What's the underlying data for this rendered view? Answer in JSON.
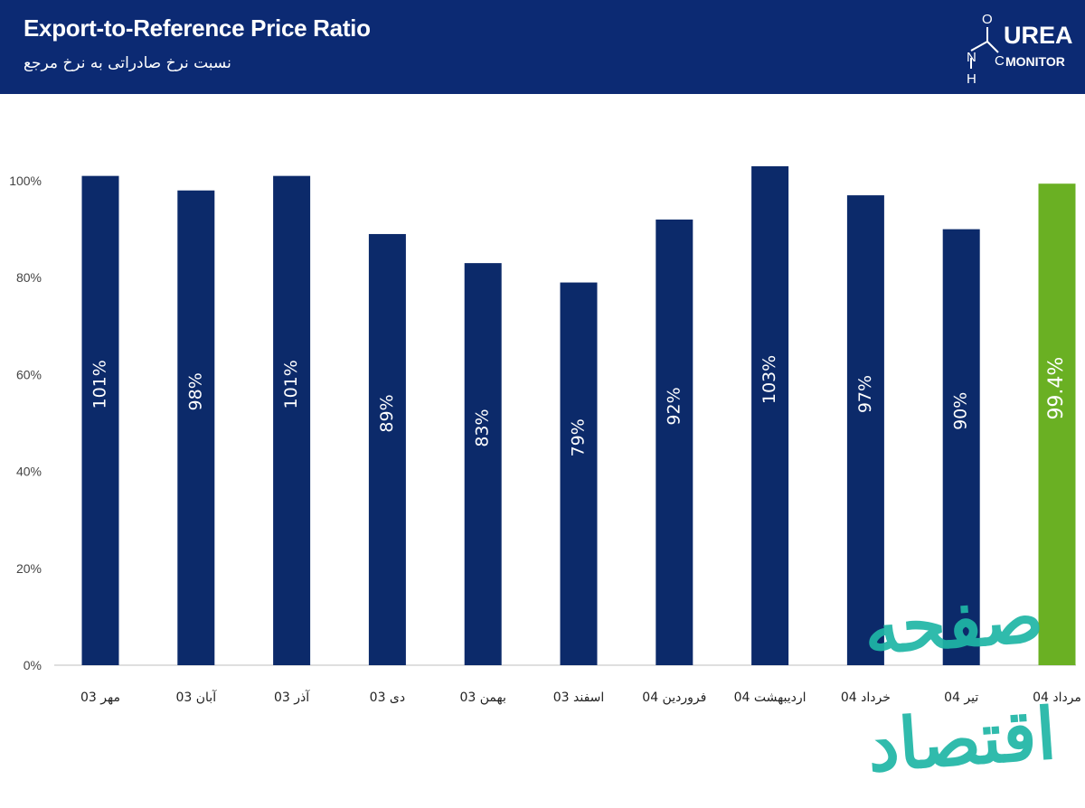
{
  "header": {
    "title": "Export-to-Reference Price Ratio",
    "subtitle": "نسبت نرخ صادراتی به نرخ مرجع",
    "logo_main": "UREA",
    "logo_sub": "MONITOR",
    "logo_atoms": [
      "O",
      "N",
      "H",
      "C"
    ],
    "background": "#0c2a73"
  },
  "watermark": {
    "text": "صفحه اقتصاد",
    "color": "#1fb6a6"
  },
  "chart_data": {
    "type": "bar",
    "title": "Export-to-Reference Price Ratio",
    "subtitle": "نسبت نرخ صادراتی به نرخ مرجع",
    "categories": [
      "مهر 03",
      "آبان 03",
      "آذر 03",
      "دی 03",
      "بهمن 03",
      "اسفند 03",
      "فروردین 04",
      "اردیبهشت 04",
      "خرداد 04",
      "تیر 04",
      "مرداد 04"
    ],
    "values": [
      101,
      98,
      101,
      89,
      83,
      79,
      92,
      103,
      97,
      90,
      99.4
    ],
    "data_labels": [
      "101%",
      "98%",
      "101%",
      "89%",
      "83%",
      "79%",
      "92%",
      "103%",
      "97%",
      "90%",
      "99.4%"
    ],
    "y_ticks": [
      "0%",
      "20%",
      "40%",
      "60%",
      "80%",
      "100%"
    ],
    "ylim": [
      0,
      100
    ],
    "xlabel": "",
    "ylabel": "",
    "grid": false,
    "bar_color": "#0c2a6a",
    "highlight_color": "#6ab023",
    "highlight_index": 10
  }
}
